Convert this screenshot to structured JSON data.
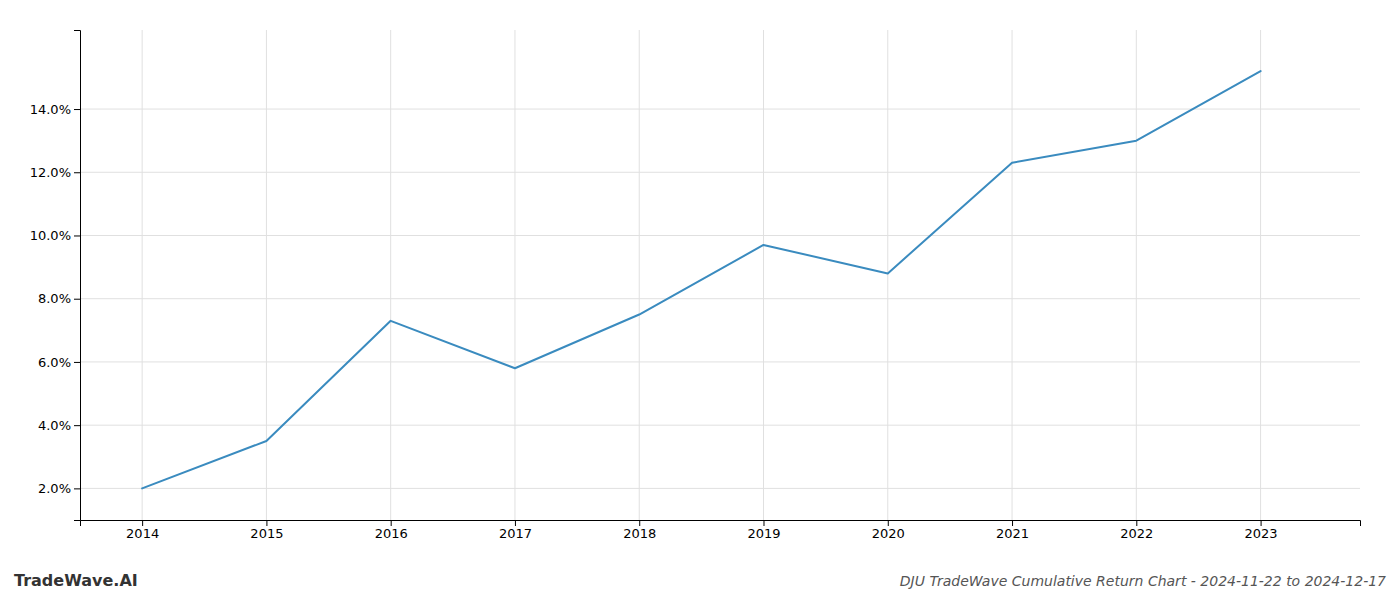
{
  "chart_data": {
    "type": "line",
    "title": "DJU TradeWave Cumulative Return Chart - 2024-11-22 to 2024-12-17",
    "annotations": [
      "TradeWave.AI"
    ],
    "x": [
      2014,
      2015,
      2016,
      2017,
      2018,
      2019,
      2020,
      2021,
      2022,
      2023
    ],
    "values": [
      2.0,
      3.5,
      7.3,
      5.8,
      7.5,
      9.7,
      8.8,
      12.3,
      13.0,
      15.2
    ],
    "color": "#3a8bbf",
    "xlim": [
      2013.5,
      2023.8
    ],
    "ylim": [
      1.0,
      16.5
    ],
    "xticks": [
      2014,
      2015,
      2016,
      2017,
      2018,
      2019,
      2020,
      2021,
      2022,
      2023
    ],
    "yticks": [
      {
        "value": 2.0,
        "label": "2.0%"
      },
      {
        "value": 4.0,
        "label": "4.0%"
      },
      {
        "value": 6.0,
        "label": "6.0%"
      },
      {
        "value": 8.0,
        "label": "8.0%"
      },
      {
        "value": 10.0,
        "label": "10.0%"
      },
      {
        "value": 12.0,
        "label": "12.0%"
      },
      {
        "value": 14.0,
        "label": "14.0%"
      }
    ],
    "grid": true
  }
}
